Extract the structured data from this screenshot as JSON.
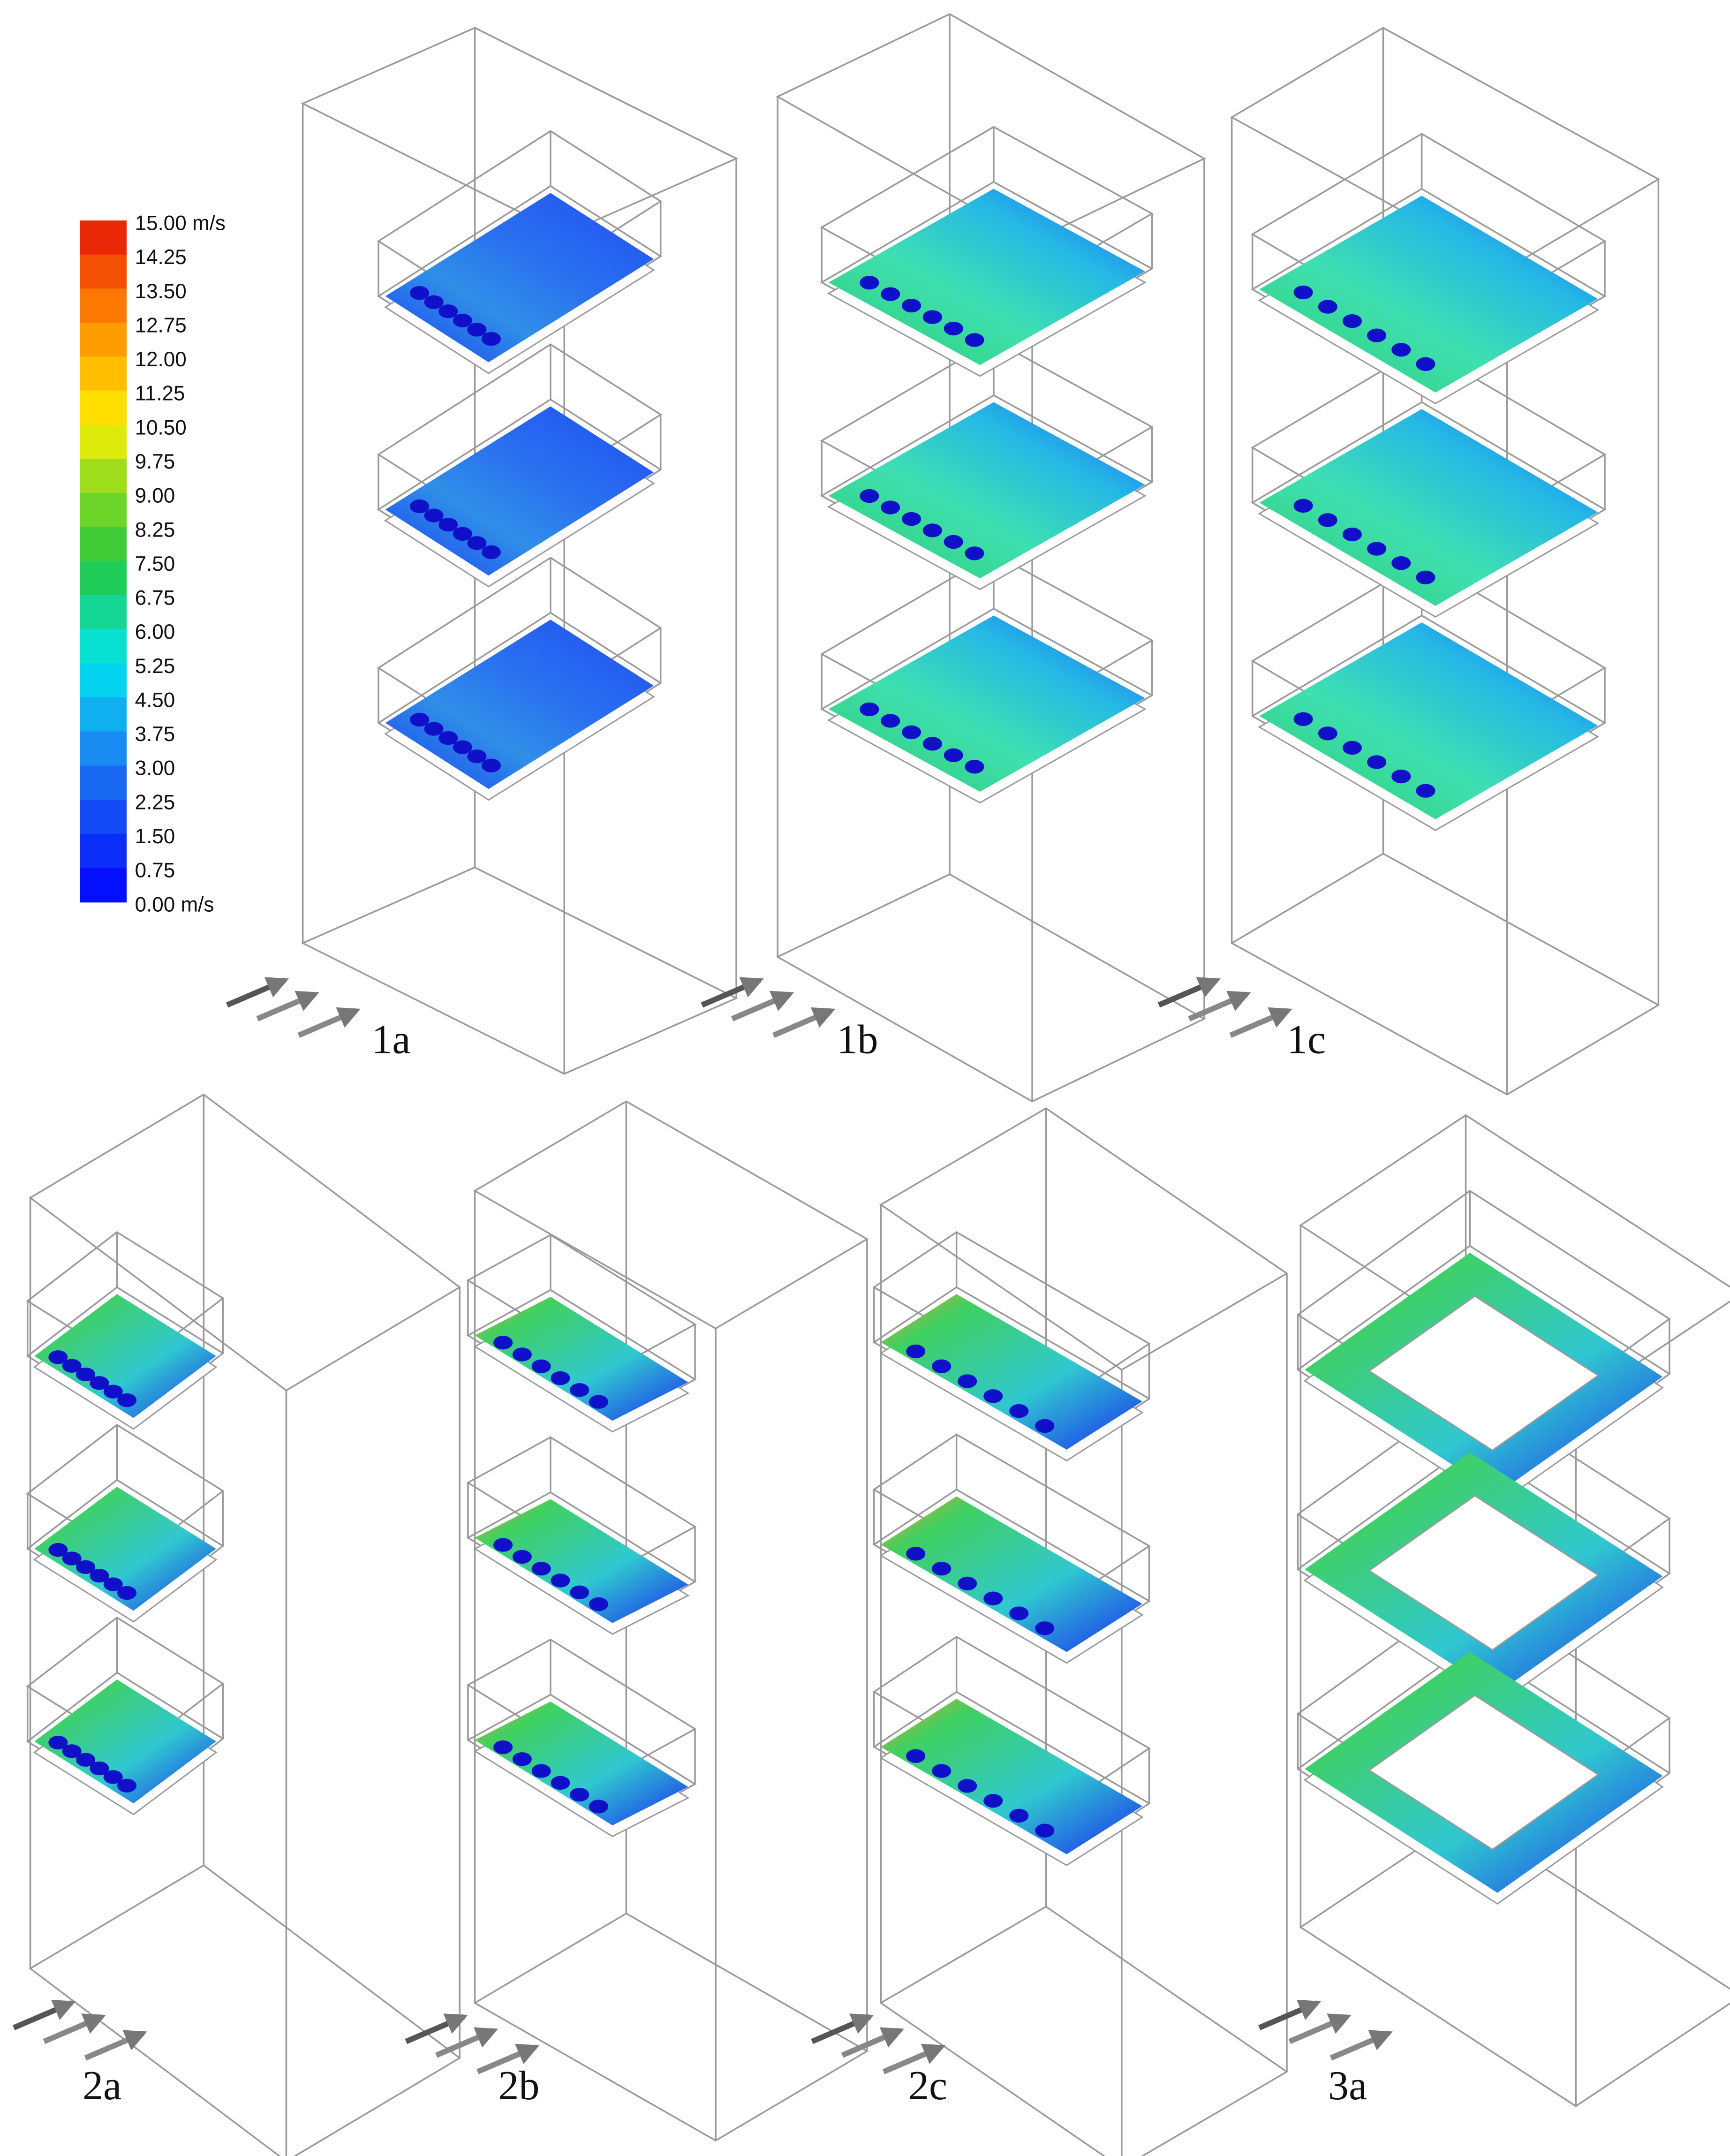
{
  "legend": {
    "labels": [
      "15.00 m/s",
      "14.25",
      "13.50",
      "12.75",
      "12.00",
      "11.25",
      "10.50",
      "9.75",
      "9.00",
      "8.25",
      "7.50",
      "6.75",
      "6.00",
      "5.25",
      "4.50",
      "3.75",
      "3.00",
      "2.25",
      "1.50",
      "0.75",
      "0.00 m/s"
    ]
  },
  "panels": [
    {
      "label": "1a"
    },
    {
      "label": "1b"
    },
    {
      "label": "1c"
    },
    {
      "label": "2a"
    },
    {
      "label": "2b"
    },
    {
      "label": "2c"
    },
    {
      "label": "3a"
    }
  ]
}
